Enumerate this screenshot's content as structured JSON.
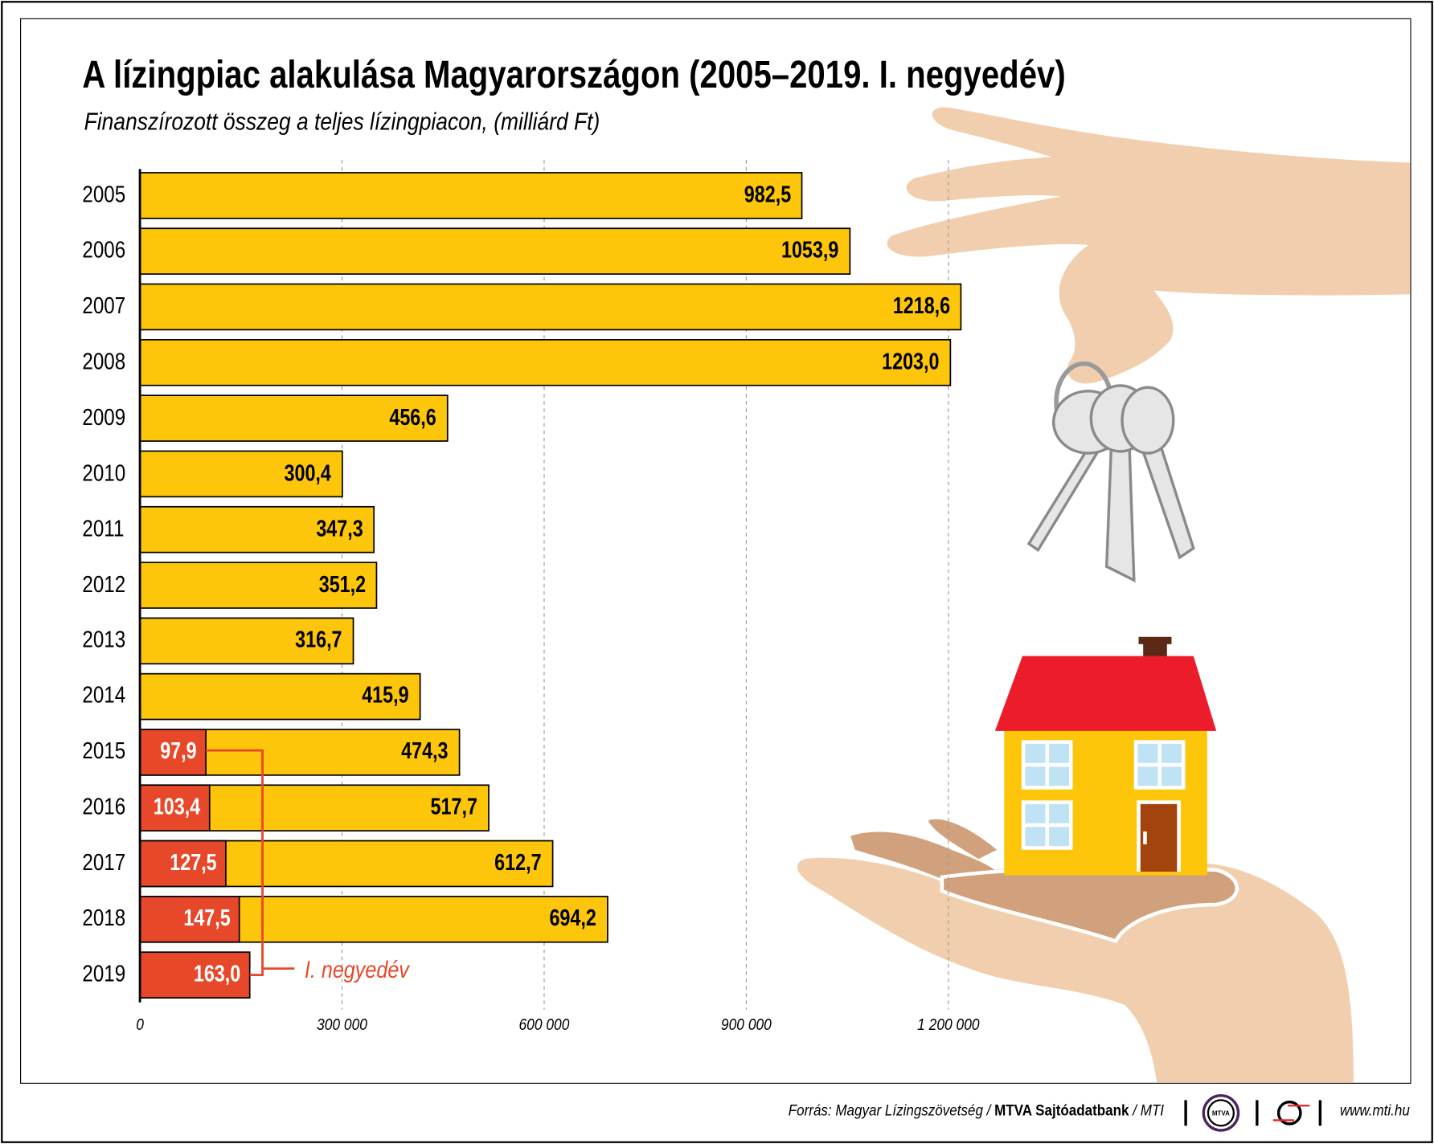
{
  "title": "A lízingpiac alakulása Magyarországon (2005–2019. I. negyedév)",
  "subtitle": "Finanszírozott összeg a teljes lízingpiacon, (milliárd Ft)",
  "chart_data": {
    "type": "bar",
    "orientation": "horizontal",
    "stacked_overlay": true,
    "categories": [
      "2005",
      "2006",
      "2007",
      "2008",
      "2009",
      "2010",
      "2011",
      "2012",
      "2013",
      "2014",
      "2015",
      "2016",
      "2017",
      "2018",
      "2019"
    ],
    "series": [
      {
        "values": [
          982.5,
          1053.9,
          1218.6,
          1203.0,
          456.6,
          300.4,
          347.3,
          351.2,
          316.7,
          415.9,
          474.3,
          517.7,
          612.7,
          694.2,
          null
        ],
        "labels": [
          "982,5",
          "1053,9",
          "1218,6",
          "1203,0",
          "456,6",
          "300,4",
          "347,3",
          "351,2",
          "316,7",
          "415,9",
          "474,3",
          "517,7",
          "612,7",
          "694,2",
          ""
        ]
      },
      {
        "name": "I. negyedév",
        "values": [
          null,
          null,
          null,
          null,
          null,
          null,
          null,
          null,
          null,
          null,
          97.9,
          103.4,
          127.5,
          147.5,
          163.0
        ],
        "labels": [
          "",
          "",
          "",
          "",
          "",
          "",
          "",
          "",
          "",
          "",
          "97,9",
          "103,4",
          "127,5",
          "147,5",
          "163,0"
        ]
      }
    ],
    "xlim": [
      0,
      1350
    ],
    "xticks": [
      0,
      300,
      600,
      900,
      1200
    ],
    "xtick_labels": [
      "0",
      "300 000",
      "600 000",
      "900 000",
      "1 200 000"
    ],
    "grid": "vertical dashed",
    "colors": {
      "annual": "#fec60b",
      "quarter": "#e8482a"
    },
    "annotation": "I. negyedév"
  },
  "footer": {
    "source_prefix": "Forrás: Magyar Lízingszövetség / ",
    "source_bold": "MTVA Sajtóadatbank",
    "source_suffix": " / MTI",
    "logo_mtva": "MTVA",
    "url": "www.mti.hu"
  }
}
